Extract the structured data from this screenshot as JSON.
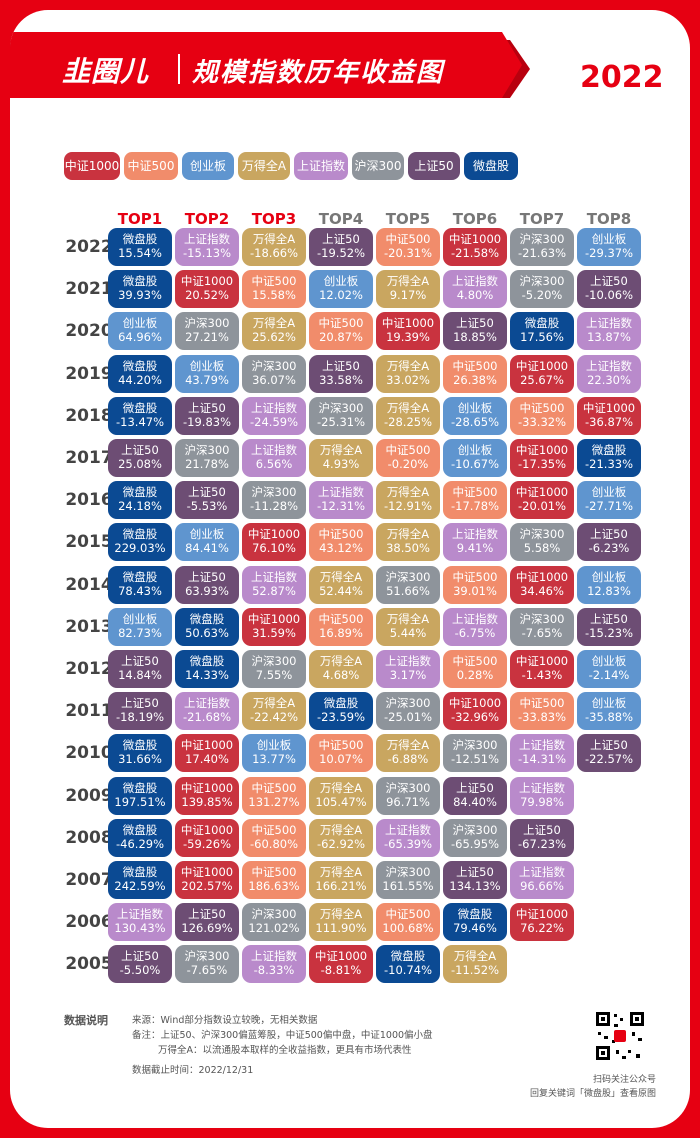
{
  "header": {
    "brand": "韭圈儿",
    "title": "规模指数历年收益图",
    "year": "2022"
  },
  "colors": {
    "中证1000": "#c9333f",
    "中证500": "#f18c6b",
    "创业板": "#5f95cf",
    "万得全A": "#c9a660",
    "上证指数": "#b98acb",
    "沪深300": "#8e949b",
    "上证50": "#6d4d74",
    "微盘股": "#0b4a93"
  },
  "legend": [
    "中证1000",
    "中证500",
    "创业板",
    "万得全A",
    "上证指数",
    "沪深300",
    "上证50",
    "微盘股"
  ],
  "chart_data": {
    "type": "table",
    "columns": [
      "TOP1",
      "TOP2",
      "TOP3",
      "TOP4",
      "TOP5",
      "TOP6",
      "TOP7",
      "TOP8"
    ],
    "rows": [
      {
        "year": "2022",
        "cells": [
          [
            "微盘股",
            "15.54%"
          ],
          [
            "上证指数",
            "-15.13%"
          ],
          [
            "万得全A",
            "-18.66%"
          ],
          [
            "上证50",
            "-19.52%"
          ],
          [
            "中证500",
            "-20.31%"
          ],
          [
            "中证1000",
            "-21.58%"
          ],
          [
            "沪深300",
            "-21.63%"
          ],
          [
            "创业板",
            "-29.37%"
          ]
        ]
      },
      {
        "year": "2021",
        "cells": [
          [
            "微盘股",
            "39.93%"
          ],
          [
            "中证1000",
            "20.52%"
          ],
          [
            "中证500",
            "15.58%"
          ],
          [
            "创业板",
            "12.02%"
          ],
          [
            "万得全A",
            "9.17%"
          ],
          [
            "上证指数",
            "4.80%"
          ],
          [
            "沪深300",
            "-5.20%"
          ],
          [
            "上证50",
            "-10.06%"
          ]
        ]
      },
      {
        "year": "2020",
        "cells": [
          [
            "创业板",
            "64.96%"
          ],
          [
            "沪深300",
            "27.21%"
          ],
          [
            "万得全A",
            "25.62%"
          ],
          [
            "中证500",
            "20.87%"
          ],
          [
            "中证1000",
            "19.39%"
          ],
          [
            "上证50",
            "18.85%"
          ],
          [
            "微盘股",
            "17.56%"
          ],
          [
            "上证指数",
            "13.87%"
          ]
        ]
      },
      {
        "year": "2019",
        "cells": [
          [
            "微盘股",
            "44.20%"
          ],
          [
            "创业板",
            "43.79%"
          ],
          [
            "沪深300",
            "36.07%"
          ],
          [
            "上证50",
            "33.58%"
          ],
          [
            "万得全A",
            "33.02%"
          ],
          [
            "中证500",
            "26.38%"
          ],
          [
            "中证1000",
            "25.67%"
          ],
          [
            "上证指数",
            "22.30%"
          ]
        ]
      },
      {
        "year": "2018",
        "cells": [
          [
            "微盘股",
            "-13.47%"
          ],
          [
            "上证50",
            "-19.83%"
          ],
          [
            "上证指数",
            "-24.59%"
          ],
          [
            "沪深300",
            "-25.31%"
          ],
          [
            "万得全A",
            "-28.25%"
          ],
          [
            "创业板",
            "-28.65%"
          ],
          [
            "中证500",
            "-33.32%"
          ],
          [
            "中证1000",
            "-36.87%"
          ]
        ]
      },
      {
        "year": "2017",
        "cells": [
          [
            "上证50",
            "25.08%"
          ],
          [
            "沪深300",
            "21.78%"
          ],
          [
            "上证指数",
            "6.56%"
          ],
          [
            "万得全A",
            "4.93%"
          ],
          [
            "中证500",
            "-0.20%"
          ],
          [
            "创业板",
            "-10.67%"
          ],
          [
            "中证1000",
            "-17.35%"
          ],
          [
            "微盘股",
            "-21.33%"
          ]
        ]
      },
      {
        "year": "2016",
        "cells": [
          [
            "微盘股",
            "24.18%"
          ],
          [
            "上证50",
            "-5.53%"
          ],
          [
            "沪深300",
            "-11.28%"
          ],
          [
            "上证指数",
            "-12.31%"
          ],
          [
            "万得全A",
            "-12.91%"
          ],
          [
            "中证500",
            "-17.78%"
          ],
          [
            "中证1000",
            "-20.01%"
          ],
          [
            "创业板",
            "-27.71%"
          ]
        ]
      },
      {
        "year": "2015",
        "cells": [
          [
            "微盘股",
            "229.03%"
          ],
          [
            "创业板",
            "84.41%"
          ],
          [
            "中证1000",
            "76.10%"
          ],
          [
            "中证500",
            "43.12%"
          ],
          [
            "万得全A",
            "38.50%"
          ],
          [
            "上证指数",
            "9.41%"
          ],
          [
            "沪深300",
            "5.58%"
          ],
          [
            "上证50",
            "-6.23%"
          ]
        ]
      },
      {
        "year": "2014",
        "cells": [
          [
            "微盘股",
            "78.43%"
          ],
          [
            "上证50",
            "63.93%"
          ],
          [
            "上证指数",
            "52.87%"
          ],
          [
            "万得全A",
            "52.44%"
          ],
          [
            "沪深300",
            "51.66%"
          ],
          [
            "中证500",
            "39.01%"
          ],
          [
            "中证1000",
            "34.46%"
          ],
          [
            "创业板",
            "12.83%"
          ]
        ]
      },
      {
        "year": "2013",
        "cells": [
          [
            "创业板",
            "82.73%"
          ],
          [
            "微盘股",
            "50.63%"
          ],
          [
            "中证1000",
            "31.59%"
          ],
          [
            "中证500",
            "16.89%"
          ],
          [
            "万得全A",
            "5.44%"
          ],
          [
            "上证指数",
            "-6.75%"
          ],
          [
            "沪深300",
            "-7.65%"
          ],
          [
            "上证50",
            "-15.23%"
          ]
        ]
      },
      {
        "year": "2012",
        "cells": [
          [
            "上证50",
            "14.84%"
          ],
          [
            "微盘股",
            "14.33%"
          ],
          [
            "沪深300",
            "7.55%"
          ],
          [
            "万得全A",
            "4.68%"
          ],
          [
            "上证指数",
            "3.17%"
          ],
          [
            "中证500",
            "0.28%"
          ],
          [
            "中证1000",
            "-1.43%"
          ],
          [
            "创业板",
            "-2.14%"
          ]
        ]
      },
      {
        "year": "2011",
        "cells": [
          [
            "上证50",
            "-18.19%"
          ],
          [
            "上证指数",
            "-21.68%"
          ],
          [
            "万得全A",
            "-22.42%"
          ],
          [
            "微盘股",
            "-23.59%"
          ],
          [
            "沪深300",
            "-25.01%"
          ],
          [
            "中证1000",
            "-32.96%"
          ],
          [
            "中证500",
            "-33.83%"
          ],
          [
            "创业板",
            "-35.88%"
          ]
        ]
      },
      {
        "year": "2010",
        "cells": [
          [
            "微盘股",
            "31.66%"
          ],
          [
            "中证1000",
            "17.40%"
          ],
          [
            "创业板",
            "13.77%"
          ],
          [
            "中证500",
            "10.07%"
          ],
          [
            "万得全A",
            "-6.88%"
          ],
          [
            "沪深300",
            "-12.51%"
          ],
          [
            "上证指数",
            "-14.31%"
          ],
          [
            "上证50",
            "-22.57%"
          ]
        ]
      },
      {
        "year": "2009",
        "cells": [
          [
            "微盘股",
            "197.51%"
          ],
          [
            "中证1000",
            "139.85%"
          ],
          [
            "中证500",
            "131.27%"
          ],
          [
            "万得全A",
            "105.47%"
          ],
          [
            "沪深300",
            "96.71%"
          ],
          [
            "上证50",
            "84.40%"
          ],
          [
            "上证指数",
            "79.98%"
          ]
        ]
      },
      {
        "year": "2008",
        "cells": [
          [
            "微盘股",
            "-46.29%"
          ],
          [
            "中证1000",
            "-59.26%"
          ],
          [
            "中证500",
            "-60.80%"
          ],
          [
            "万得全A",
            "-62.92%"
          ],
          [
            "上证指数",
            "-65.39%"
          ],
          [
            "沪深300",
            "-65.95%"
          ],
          [
            "上证50",
            "-67.23%"
          ]
        ]
      },
      {
        "year": "2007",
        "cells": [
          [
            "微盘股",
            "242.59%"
          ],
          [
            "中证1000",
            "202.57%"
          ],
          [
            "中证500",
            "186.63%"
          ],
          [
            "万得全A",
            "166.21%"
          ],
          [
            "沪深300",
            "161.55%"
          ],
          [
            "上证50",
            "134.13%"
          ],
          [
            "上证指数",
            "96.66%"
          ]
        ]
      },
      {
        "year": "2006",
        "cells": [
          [
            "上证指数",
            "130.43%"
          ],
          [
            "上证50",
            "126.69%"
          ],
          [
            "沪深300",
            "121.02%"
          ],
          [
            "万得全A",
            "111.90%"
          ],
          [
            "中证500",
            "100.68%"
          ],
          [
            "微盘股",
            "79.46%"
          ],
          [
            "中证1000",
            "76.22%"
          ]
        ]
      },
      {
        "year": "2005",
        "cells": [
          [
            "上证50",
            "-5.50%"
          ],
          [
            "沪深300",
            "-7.65%"
          ],
          [
            "上证指数",
            "-8.33%"
          ],
          [
            "中证1000",
            "-8.81%"
          ],
          [
            "微盘股",
            "-10.74%"
          ],
          [
            "万得全A",
            "-11.52%"
          ]
        ]
      }
    ]
  },
  "footer": {
    "label": "数据说明",
    "line1": "来源：Wind部分指数设立较晚，无相关数据",
    "line2": "备注：上证50、沪深300偏蓝筹股，中证500偏中盘，中证1000偏小盘",
    "line3": "万得全A：以流通股本取样的全收益指数，更具有市场代表性",
    "line4": "数据截止时间：2022/12/31",
    "qr_caption1": "扫码关注公众号",
    "qr_caption2": "回复关键词「微盘股」查看原图"
  }
}
